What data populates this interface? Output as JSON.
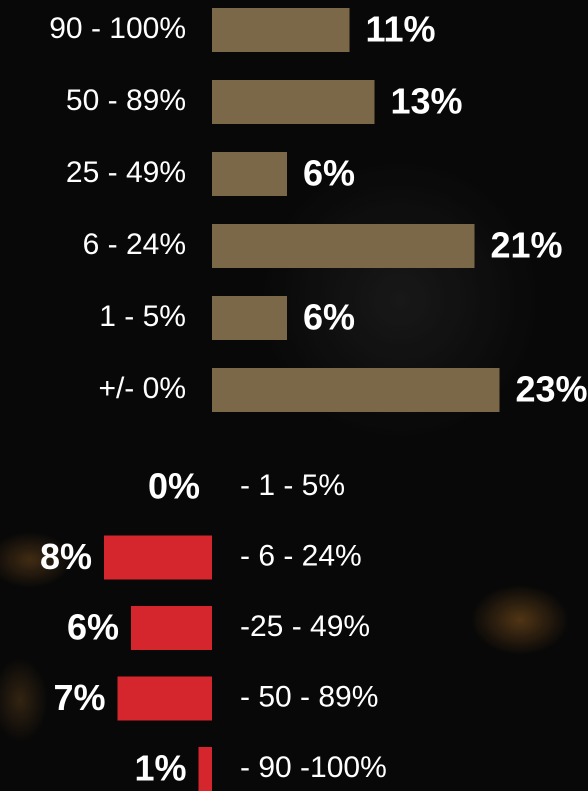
{
  "chart_data": [
    {
      "type": "bar",
      "orientation": "horizontal",
      "direction": "right",
      "color": "#7a6849",
      "categories": [
        "90 - 100%",
        "50 - 89%",
        "25 - 49%",
        "6 - 24%",
        "1 - 5%",
        "+/- 0%"
      ],
      "values": [
        11,
        13,
        6,
        21,
        6,
        23
      ],
      "value_labels": [
        "11%",
        "13%",
        "6%",
        "21%",
        "6%",
        "23%"
      ]
    },
    {
      "type": "bar",
      "orientation": "horizontal",
      "direction": "left",
      "color": "#d4262c",
      "categories": [
        "- 1 - 5%",
        "- 6 - 24%",
        "-25 - 49%",
        "- 50 - 89%",
        "- 90 -100%"
      ],
      "values": [
        0,
        8,
        6,
        7,
        1
      ],
      "value_labels": [
        "0%",
        "8%",
        "6%",
        "7%",
        "1%"
      ]
    }
  ]
}
